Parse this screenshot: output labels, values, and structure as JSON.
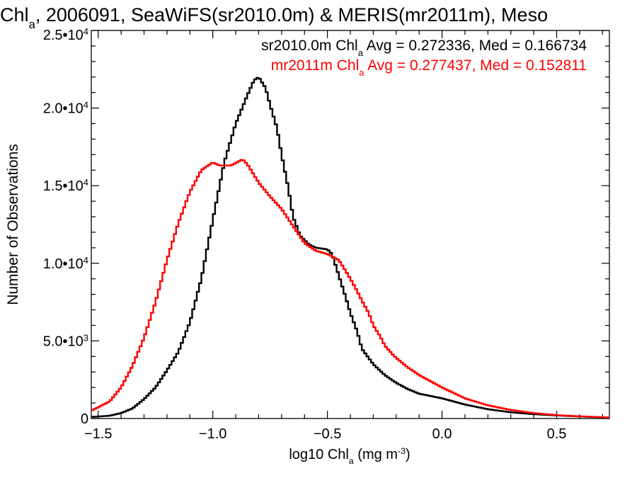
{
  "figure": {
    "title_parts": [
      "Chl",
      "a",
      ", 2006091, SeaWiFS(sr2010.0m) & MERIS(mr2011m), Meso"
    ],
    "ylabel": "Number of Observations",
    "xlabel_parts": [
      "log10 Chl",
      "a",
      " (mg m",
      "-3",
      ")"
    ],
    "annotations": [
      {
        "parts": [
          "sr2010.0m Chl",
          "a",
          " Avg = 0.272336, Med = 0.166734"
        ],
        "color": "#000000"
      },
      {
        "parts": [
          "mr2011m Chl",
          "a",
          " Avg = 0.277437, Med = 0.152811"
        ],
        "color": "#ff0000"
      }
    ]
  },
  "chart_data": {
    "type": "line",
    "step": true,
    "x_range": [
      -1.53,
      0.73
    ],
    "y_range": [
      0,
      25000
    ],
    "x_ticks": [
      {
        "value": -1.5,
        "label": "−1.5"
      },
      {
        "value": -1.0,
        "label": "−1.0"
      },
      {
        "value": -0.5,
        "label": "−0.5"
      },
      {
        "value": 0.0,
        "label": "0.0"
      },
      {
        "value": 0.5,
        "label": "0.5"
      }
    ],
    "x_minor_step": 0.1,
    "y_ticks": [
      {
        "value": 0,
        "mant": "0",
        "exp": ""
      },
      {
        "value": 5000,
        "mant": "5.0•10",
        "exp": "3"
      },
      {
        "value": 10000,
        "mant": "1.0•10",
        "exp": "4"
      },
      {
        "value": 15000,
        "mant": "1.5•10",
        "exp": "4"
      },
      {
        "value": 20000,
        "mant": "2.0•10",
        "exp": "4"
      },
      {
        "value": 25000,
        "mant": "2.5•10",
        "exp": "4"
      }
    ],
    "y_minor_step": 1000,
    "grid": false,
    "series": [
      {
        "name": "sr2010.0m",
        "color": "#000000",
        "points": [
          [
            -1.53,
            100
          ],
          [
            -1.45,
            180
          ],
          [
            -1.4,
            350
          ],
          [
            -1.35,
            650
          ],
          [
            -1.3,
            1250
          ],
          [
            -1.25,
            2000
          ],
          [
            -1.2,
            3100
          ],
          [
            -1.15,
            4300
          ],
          [
            -1.1,
            6200
          ],
          [
            -1.05,
            9000
          ],
          [
            -1.0,
            12800
          ],
          [
            -0.95,
            16500
          ],
          [
            -0.9,
            19000
          ],
          [
            -0.85,
            20800
          ],
          [
            -0.82,
            21800
          ],
          [
            -0.8,
            22000
          ],
          [
            -0.77,
            21300
          ],
          [
            -0.75,
            20200
          ],
          [
            -0.72,
            18700
          ],
          [
            -0.7,
            17000
          ],
          [
            -0.67,
            14800
          ],
          [
            -0.65,
            13000
          ],
          [
            -0.62,
            11800
          ],
          [
            -0.58,
            11200
          ],
          [
            -0.55,
            11000
          ],
          [
            -0.5,
            10900
          ],
          [
            -0.48,
            10600
          ],
          [
            -0.45,
            9200
          ],
          [
            -0.42,
            7800
          ],
          [
            -0.4,
            6800
          ],
          [
            -0.37,
            5600
          ],
          [
            -0.35,
            4500
          ],
          [
            -0.32,
            3900
          ],
          [
            -0.3,
            3500
          ],
          [
            -0.25,
            2800
          ],
          [
            -0.2,
            2300
          ],
          [
            -0.15,
            1900
          ],
          [
            -0.1,
            1600
          ],
          [
            -0.05,
            1450
          ],
          [
            0.0,
            1300
          ],
          [
            0.1,
            900
          ],
          [
            0.2,
            600
          ],
          [
            0.3,
            400
          ],
          [
            0.4,
            280
          ],
          [
            0.5,
            200
          ],
          [
            0.6,
            130
          ],
          [
            0.73,
            60
          ]
        ]
      },
      {
        "name": "mr2011m",
        "color": "#ff0000",
        "points": [
          [
            -1.53,
            500
          ],
          [
            -1.45,
            1100
          ],
          [
            -1.4,
            2000
          ],
          [
            -1.35,
            3400
          ],
          [
            -1.3,
            5200
          ],
          [
            -1.25,
            7500
          ],
          [
            -1.2,
            10200
          ],
          [
            -1.15,
            12600
          ],
          [
            -1.1,
            14600
          ],
          [
            -1.05,
            16000
          ],
          [
            -1.0,
            16500
          ],
          [
            -0.97,
            16300
          ],
          [
            -0.92,
            16300
          ],
          [
            -0.87,
            16700
          ],
          [
            -0.85,
            16400
          ],
          [
            -0.8,
            15200
          ],
          [
            -0.75,
            14300
          ],
          [
            -0.7,
            13500
          ],
          [
            -0.65,
            12400
          ],
          [
            -0.6,
            11300
          ],
          [
            -0.55,
            10800
          ],
          [
            -0.5,
            10600
          ],
          [
            -0.45,
            10200
          ],
          [
            -0.42,
            9500
          ],
          [
            -0.4,
            9000
          ],
          [
            -0.37,
            8200
          ],
          [
            -0.35,
            7600
          ],
          [
            -0.32,
            6800
          ],
          [
            -0.3,
            6000
          ],
          [
            -0.27,
            5300
          ],
          [
            -0.25,
            4700
          ],
          [
            -0.22,
            4200
          ],
          [
            -0.2,
            3900
          ],
          [
            -0.15,
            3300
          ],
          [
            -0.1,
            2800
          ],
          [
            -0.05,
            2400
          ],
          [
            0.0,
            2000
          ],
          [
            0.1,
            1300
          ],
          [
            0.2,
            850
          ],
          [
            0.3,
            550
          ],
          [
            0.4,
            350
          ],
          [
            0.5,
            220
          ],
          [
            0.6,
            140
          ],
          [
            0.73,
            70
          ]
        ]
      }
    ]
  }
}
